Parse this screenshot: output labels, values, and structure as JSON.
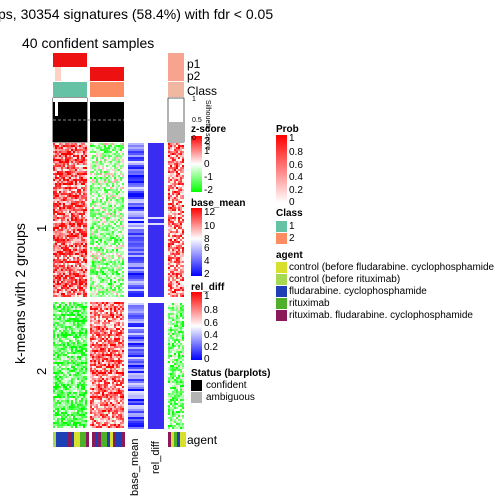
{
  "title": "ps, 30354 signatures (58.4%) with fdr < 0.05",
  "subtitle": "40 confident samples",
  "row_title": "k-means with 2 groups",
  "group_labels": [
    "1",
    "2"
  ],
  "annotation_labels": {
    "p1": "p1",
    "p2": "p2",
    "class": "Class",
    "agent": "agent"
  },
  "column_labels": {
    "base_mean": "base_mean",
    "rel_diff": "rel_diff"
  },
  "silhouette": {
    "ticks": [
      "1",
      "0.5",
      "0"
    ],
    "label": "Silhouette score"
  },
  "legends": {
    "zscore": {
      "title": "z-score",
      "ticks": [
        "2",
        "1",
        "0",
        "-1",
        "-2"
      ]
    },
    "base_mean": {
      "title": "base_mean",
      "ticks": [
        "12",
        "10",
        "8",
        "6",
        "4",
        "2"
      ]
    },
    "rel_diff": {
      "title": "rel_diff",
      "ticks": [
        "1",
        "0.8",
        "0.6",
        "0.4",
        "0.2",
        "0"
      ]
    },
    "prob": {
      "title": "Prob",
      "ticks": [
        "1",
        "0.8",
        "0.6",
        "0.4",
        "0.2",
        "0"
      ]
    },
    "class": {
      "title": "Class",
      "items": [
        {
          "label": "1",
          "color": "#66c2a5"
        },
        {
          "label": "2",
          "color": "#fc8d62"
        }
      ]
    },
    "agent": {
      "title": "agent",
      "items": [
        {
          "label": "control (before fludarabine. cyclophosphamide",
          "color": "#d8e02e"
        },
        {
          "label": "control (before rituximab)",
          "color": "#a6d854"
        },
        {
          "label": "fludarabine. cyclophosphamide",
          "color": "#1f3fb4"
        },
        {
          "label": "rituximab",
          "color": "#4daf2a"
        },
        {
          "label": "rituximab. fludarabine. cyclophosphamide",
          "color": "#8b1a5a"
        }
      ]
    },
    "status": {
      "title": "Status (barplots)",
      "items": [
        {
          "label": "confident",
          "color": "#000000"
        },
        {
          "label": "ambiguous",
          "color": "#b3b3b3"
        }
      ]
    }
  },
  "colors": {
    "high": "#ff0000",
    "low": "#00ff00",
    "mid": "#ffffff",
    "base_mean_low": "#0000ff",
    "class1": "#66c2a5",
    "class2": "#fc8d62"
  },
  "chart_data": {
    "type": "heatmap",
    "title": "ps, 30354 signatures (58.4%) with fdr < 0.05",
    "subtitle": "40 confident samples",
    "row_groups": [
      "1",
      "2"
    ],
    "column_groups": [
      "1",
      "2"
    ],
    "zscore_range": [
      -2,
      2
    ],
    "base_mean_range": [
      2,
      12
    ],
    "rel_diff_range": [
      0,
      1
    ],
    "prob_range": [
      0,
      1
    ]
  }
}
